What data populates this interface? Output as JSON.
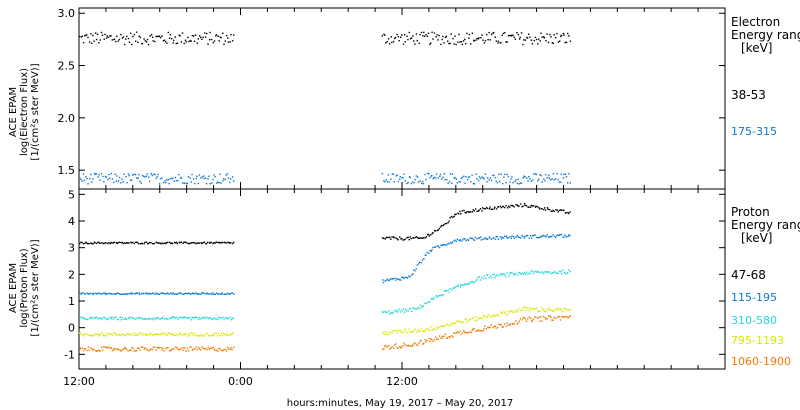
{
  "chart_data": [
    {
      "type": "scatter",
      "ylabel_lines": [
        "ACE EPAM",
        "log(Electron Flux)",
        "[1/(cm²s ster MeV)]"
      ],
      "y_ticks": [
        {
          "v": 3.0,
          "label": "3.0"
        },
        {
          "v": 2.5,
          "label": "2.5"
        },
        {
          "v": 2.0,
          "label": "2.0"
        },
        {
          "v": 1.5,
          "label": "1.5"
        }
      ],
      "ylim": [
        1.32,
        3.05
      ],
      "legend": {
        "title_lines": [
          "Electron",
          "Energy ranges",
          "[keV]"
        ]
      },
      "series": [
        {
          "name": "38-53",
          "color": "#000000",
          "segments": [
            {
              "start": 0,
              "end": 11.5,
              "base": 2.76,
              "jitter": 0.06,
              "trend": []
            },
            {
              "start": 22.5,
              "end": 36.5,
              "base": 2.76,
              "jitter": 0.06,
              "trend": []
            }
          ]
        },
        {
          "name": "175-315",
          "color": "#0a7ad6",
          "segments": [
            {
              "start": 0,
              "end": 11.5,
              "base": 1.42,
              "jitter": 0.05,
              "trend": []
            },
            {
              "start": 22.5,
              "end": 36.5,
              "base": 1.42,
              "jitter": 0.05,
              "trend": []
            }
          ]
        }
      ]
    },
    {
      "type": "scatter",
      "ylabel_lines": [
        "ACE EPAM",
        "log(Proton Flux)",
        "[1/(cm²s ster MeV)]"
      ],
      "y_ticks": [
        {
          "v": 5,
          "label": "5"
        },
        {
          "v": 4,
          "label": "4"
        },
        {
          "v": 3,
          "label": "3"
        },
        {
          "v": 2,
          "label": "2"
        },
        {
          "v": 1,
          "label": "1"
        },
        {
          "v": 0,
          "label": "0"
        },
        {
          "v": -1,
          "label": "-1"
        }
      ],
      "ylim": [
        -1.55,
        5.2
      ],
      "legend": {
        "title_lines": [
          "Proton",
          "Energy ranges",
          "[keV]"
        ]
      },
      "series": [
        {
          "name": "47-68",
          "color": "#000000",
          "segments": [
            {
              "start": 0,
              "end": 11.5,
              "base": 3.18,
              "jitter": 0.03,
              "trend": []
            },
            {
              "start": 22.5,
              "end": 36.5,
              "base": 3.35,
              "jitter": 0.06,
              "trend": [
                [
                  22.5,
                  3.35
                ],
                [
                  25.5,
                  3.35
                ],
                [
                  27,
                  3.8
                ],
                [
                  28,
                  4.3
                ],
                [
                  30,
                  4.45
                ],
                [
                  33,
                  4.6
                ],
                [
                  36.5,
                  4.3
                ]
              ]
            }
          ]
        },
        {
          "name": "115-195",
          "color": "#0a7ad6",
          "segments": [
            {
              "start": 0,
              "end": 11.5,
              "base": 1.28,
              "jitter": 0.03,
              "trend": []
            },
            {
              "start": 22.5,
              "end": 36.5,
              "base": 1.8,
              "jitter": 0.06,
              "trend": [
                [
                  22.5,
                  1.75
                ],
                [
                  24.5,
                  1.9
                ],
                [
                  26,
                  2.9
                ],
                [
                  28,
                  3.3
                ],
                [
                  32,
                  3.4
                ],
                [
                  36.5,
                  3.45
                ]
              ]
            }
          ]
        },
        {
          "name": "310-580",
          "color": "#22d8d8",
          "segments": [
            {
              "start": 0,
              "end": 11.5,
              "base": 0.35,
              "jitter": 0.05,
              "trend": []
            },
            {
              "start": 22.5,
              "end": 36.5,
              "base": 0.6,
              "jitter": 0.07,
              "trend": [
                [
                  22.5,
                  0.55
                ],
                [
                  25,
                  0.7
                ],
                [
                  27,
                  1.3
                ],
                [
                  28.5,
                  1.6
                ],
                [
                  30,
                  1.9
                ],
                [
                  33,
                  2.05
                ],
                [
                  36.5,
                  2.1
                ]
              ]
            }
          ]
        },
        {
          "name": "795-1193",
          "color": "#d8e800",
          "segments": [
            {
              "start": 0,
              "end": 11.5,
              "base": -0.25,
              "jitter": 0.06,
              "trend": []
            },
            {
              "start": 22.5,
              "end": 36.5,
              "base": -0.2,
              "jitter": 0.08,
              "trend": [
                [
                  22.5,
                  -0.2
                ],
                [
                  26,
                  -0.05
                ],
                [
                  28,
                  0.2
                ],
                [
                  30,
                  0.4
                ],
                [
                  33,
                  0.7
                ],
                [
                  36.5,
                  0.65
                ]
              ]
            }
          ]
        },
        {
          "name": "1060-1900",
          "color": "#f07c00",
          "segments": [
            {
              "start": 0,
              "end": 11.5,
              "base": -0.8,
              "jitter": 0.08,
              "trend": []
            },
            {
              "start": 22.5,
              "end": 36.5,
              "base": -0.7,
              "jitter": 0.09,
              "trend": [
                [
                  22.5,
                  -0.75
                ],
                [
                  25,
                  -0.6
                ],
                [
                  27,
                  -0.35
                ],
                [
                  29,
                  -0.1
                ],
                [
                  31,
                  0.05
                ],
                [
                  33,
                  0.3
                ],
                [
                  36.5,
                  0.4
                ]
              ]
            }
          ]
        }
      ]
    }
  ],
  "x_axis": {
    "xlim": [
      0,
      48
    ],
    "ticks": [
      {
        "v": 0,
        "label": "12:00"
      },
      {
        "v": 12,
        "label": "0:00"
      },
      {
        "v": 24,
        "label": "12:00"
      }
    ],
    "minor_step": 2,
    "label": "hours:minutes, May 19, 2017 – May 20, 2017"
  }
}
